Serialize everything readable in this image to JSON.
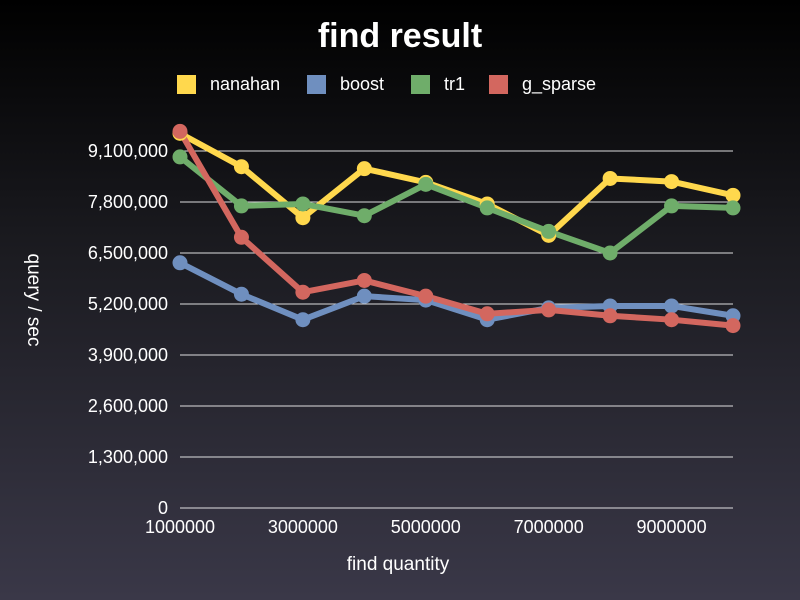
{
  "chart_data": {
    "type": "line",
    "title": "find result",
    "xlabel": "find quantity",
    "ylabel": "query / sec",
    "x": [
      1000000,
      2000000,
      3000000,
      4000000,
      5000000,
      6000000,
      7000000,
      8000000,
      9000000,
      10000000
    ],
    "xlim": [
      1000000,
      10000000
    ],
    "ylim": [
      0,
      10400000
    ],
    "x_ticks": [
      1000000,
      3000000,
      5000000,
      7000000,
      9000000
    ],
    "x_tick_labels": [
      "1000000",
      "3000000",
      "5000000",
      "7000000",
      "9000000"
    ],
    "y_ticks": [
      0,
      1300000,
      2600000,
      3900000,
      5200000,
      6500000,
      7800000,
      9100000
    ],
    "y_tick_labels": [
      "0",
      "1,300,000",
      "2,600,000",
      "3,900,000",
      "5,200,000",
      "6,500,000",
      "7,800,000",
      "9,100,000"
    ],
    "grid": true,
    "legend_position": "top",
    "series": [
      {
        "name": "nanahan",
        "color": "#ffd84d",
        "values": [
          9550000,
          8700000,
          7400000,
          8650000,
          8300000,
          7750000,
          6950000,
          8400000,
          8320000,
          7970000
        ]
      },
      {
        "name": "boost",
        "color": "#6f8fbf",
        "values": [
          6250000,
          5450000,
          4800000,
          5400000,
          5300000,
          4800000,
          5100000,
          5150000,
          5150000,
          4900000
        ]
      },
      {
        "name": "tr1",
        "color": "#6fad6a",
        "values": [
          8950000,
          7700000,
          7750000,
          7450000,
          8250000,
          7650000,
          7050000,
          6500000,
          7700000,
          7650000
        ]
      },
      {
        "name": "g_sparse",
        "color": "#d3675f",
        "values": [
          9600000,
          6900000,
          5500000,
          5800000,
          5400000,
          4950000,
          5050000,
          4900000,
          4800000,
          4650000
        ]
      }
    ]
  }
}
